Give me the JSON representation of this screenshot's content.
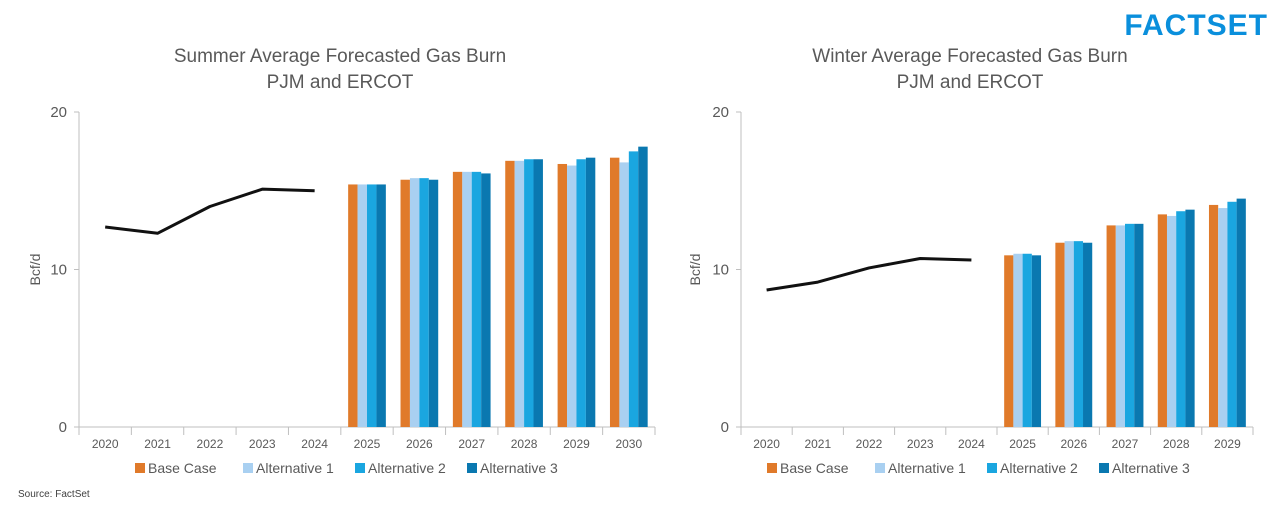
{
  "logo": {
    "text": "FACTSET",
    "color": "#0a8fdc"
  },
  "source": "Source: FactSet",
  "colors": {
    "base_case": "#e07a2a",
    "alternative_1": "#a9d0f1",
    "alternative_2": "#1aa6e0",
    "alternative_3": "#0a78b0",
    "history_line": "#111111",
    "grid": "#d9d9d9",
    "axis": "#bfbfbf"
  },
  "chart_data": [
    {
      "type": "bar",
      "title": [
        "Summer Average Forecasted Gas Burn",
        "PJM and ERCOT"
      ],
      "ylabel": "Bcf/d",
      "xlabel": "",
      "ylim": [
        0,
        20
      ],
      "yticks": [
        0,
        10,
        20
      ],
      "grid": false,
      "legend_position": "bottom",
      "categories": [
        "2020",
        "2021",
        "2022",
        "2023",
        "2024",
        "2025",
        "2026",
        "2027",
        "2028",
        "2029",
        "2030"
      ],
      "history_line": {
        "categories": [
          "2020",
          "2021",
          "2022",
          "2023",
          "2024"
        ],
        "values": [
          12.7,
          12.3,
          14.0,
          15.1,
          15.0
        ]
      },
      "series": [
        {
          "name": "Base Case",
          "values": [
            null,
            null,
            null,
            null,
            null,
            15.4,
            15.7,
            16.2,
            16.9,
            16.7,
            17.1
          ]
        },
        {
          "name": "Alternative 1",
          "values": [
            null,
            null,
            null,
            null,
            null,
            15.4,
            15.8,
            16.2,
            16.9,
            16.6,
            16.8
          ]
        },
        {
          "name": "Alternative 2",
          "values": [
            null,
            null,
            null,
            null,
            null,
            15.4,
            15.8,
            16.2,
            17.0,
            17.0,
            17.5
          ]
        },
        {
          "name": "Alternative 3",
          "values": [
            null,
            null,
            null,
            null,
            null,
            15.4,
            15.7,
            16.1,
            17.0,
            17.1,
            17.8
          ]
        }
      ]
    },
    {
      "type": "bar",
      "title": [
        "Winter Average Forecasted Gas Burn",
        "PJM and ERCOT"
      ],
      "ylabel": "Bcf/d",
      "xlabel": "",
      "ylim": [
        0,
        20
      ],
      "yticks": [
        0,
        10,
        20
      ],
      "grid": false,
      "legend_position": "bottom",
      "categories": [
        "2020",
        "2021",
        "2022",
        "2023",
        "2024",
        "2025",
        "2026",
        "2027",
        "2028",
        "2029"
      ],
      "history_line": {
        "categories": [
          "2020",
          "2021",
          "2022",
          "2023",
          "2024"
        ],
        "values": [
          8.7,
          9.2,
          10.1,
          10.7,
          10.6
        ]
      },
      "series": [
        {
          "name": "Base Case",
          "values": [
            null,
            null,
            null,
            null,
            null,
            10.9,
            11.7,
            12.8,
            13.5,
            14.1
          ]
        },
        {
          "name": "Alternative 1",
          "values": [
            null,
            null,
            null,
            null,
            null,
            11.0,
            11.8,
            12.8,
            13.4,
            13.9
          ]
        },
        {
          "name": "Alternative 2",
          "values": [
            null,
            null,
            null,
            null,
            null,
            11.0,
            11.8,
            12.9,
            13.7,
            14.3
          ]
        },
        {
          "name": "Alternative 3",
          "values": [
            null,
            null,
            null,
            null,
            null,
            10.9,
            11.7,
            12.9,
            13.8,
            14.5
          ]
        }
      ]
    }
  ]
}
